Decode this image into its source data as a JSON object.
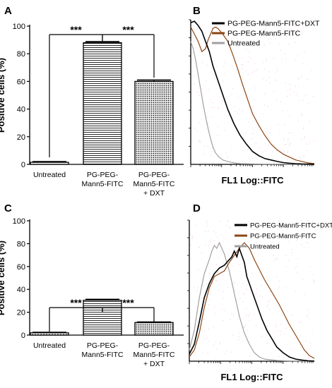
{
  "panels": {
    "A": "A",
    "B": "B",
    "C": "C",
    "D": "D"
  },
  "chart_data": [
    {
      "id": "A",
      "type": "bar",
      "ylabel": "Positive cells (%)",
      "ylim": [
        0,
        100
      ],
      "yticks": [
        "0",
        "20",
        "40",
        "60",
        "80",
        "100"
      ],
      "categories": [
        [
          "Untreated"
        ],
        [
          "PG-PEG-",
          "Mann5-FITC"
        ],
        [
          "PG-PEG-",
          "Mann5-FITC",
          "+ DXT"
        ]
      ],
      "values": [
        1.5,
        88,
        60
      ],
      "errors": [
        0.5,
        0.8,
        1
      ],
      "patterns": [
        "dots",
        "hlines",
        "dots-dense"
      ],
      "significance": [
        {
          "from": 0,
          "to": 1,
          "label": "***"
        },
        {
          "from": 1,
          "to": 2,
          "label": "***"
        }
      ]
    },
    {
      "id": "B",
      "type": "line",
      "xlabel": "FL1 Log::FITC",
      "legend": [
        {
          "name": "PG-PEG-Mann5-FITC+DXT",
          "color": "#000000"
        },
        {
          "name": "PG-PEG-Mann5-FITC",
          "color": "#8b4513"
        },
        {
          "name": "Untreated",
          "color": "#a0a0a0"
        }
      ],
      "series": [
        {
          "name": "PG-PEG-Mann5-FITC+DXT",
          "color": "#000000",
          "x": [
            0,
            3,
            6,
            9,
            12,
            15,
            18,
            22,
            26,
            30,
            35,
            40,
            45,
            50,
            55,
            60,
            65,
            70,
            75,
            80,
            85,
            90,
            95,
            100
          ],
          "y": [
            98,
            99,
            96,
            92,
            85,
            78,
            68,
            58,
            48,
            38,
            28,
            20,
            14,
            9,
            6,
            4,
            3,
            2,
            1.2,
            0.8,
            0.5,
            0.3,
            0.2,
            0.1
          ]
        },
        {
          "name": "PG-PEG-Mann5-FITC",
          "color": "#8b4513",
          "x": [
            0,
            3,
            6,
            9,
            12,
            14,
            16,
            18,
            20,
            22,
            24,
            26,
            30,
            34,
            38,
            42,
            46,
            50,
            55,
            60,
            65,
            70,
            75,
            80,
            85,
            90,
            95,
            100
          ],
          "y": [
            95,
            90,
            85,
            78,
            80,
            86,
            90,
            94,
            95,
            94,
            92,
            90,
            85,
            76,
            66,
            55,
            45,
            35,
            27,
            20,
            14,
            10,
            7,
            5,
            3,
            2,
            1,
            0.5
          ]
        },
        {
          "name": "Untreated",
          "color": "#a0a0a0",
          "x": [
            0,
            2,
            4,
            6,
            8,
            10,
            12,
            14,
            16,
            18,
            20,
            23,
            26,
            30,
            35,
            40,
            50,
            60,
            80,
            100
          ],
          "y": [
            85,
            80,
            72,
            62,
            52,
            42,
            33,
            25,
            18,
            12,
            8,
            5,
            3,
            2,
            1,
            0.5,
            0.3,
            0.2,
            0.1,
            0
          ]
        }
      ]
    },
    {
      "id": "C",
      "type": "bar",
      "ylabel": "Positive cells (%)",
      "ylim": [
        0,
        100
      ],
      "yticks": [
        "0",
        "20",
        "40",
        "60",
        "80",
        "100"
      ],
      "categories": [
        [
          "Untreated"
        ],
        [
          "PG-PEG-",
          "Mann5-FITC"
        ],
        [
          "PG-PEG-",
          "Mann5-FITC",
          "+ DXT"
        ]
      ],
      "values": [
        2,
        30.5,
        11
      ],
      "errors": [
        0.4,
        0.8,
        0.5
      ],
      "patterns": [
        "dots",
        "hlines",
        "dots-dense"
      ],
      "significance": [
        {
          "from": 0,
          "to": 1,
          "label": "***"
        },
        {
          "from": 1,
          "to": 2,
          "label": "***"
        }
      ]
    },
    {
      "id": "D",
      "type": "line",
      "xlabel": "FL1 Log::FITC",
      "legend": [
        {
          "name": "PG-PEG-Mann5-FITC+DXT",
          "color": "#000000"
        },
        {
          "name": "PG-PEG-Mann5-FITC",
          "color": "#8b4513"
        },
        {
          "name": "Untreated",
          "color": "#a0a0a0"
        }
      ],
      "series": [
        {
          "name": "PG-PEG-Mann5-FITC+DXT",
          "color": "#000000",
          "x": [
            0,
            4,
            8,
            12,
            16,
            20,
            24,
            28,
            32,
            34,
            36,
            38,
            40,
            42,
            44,
            46,
            48,
            50,
            54,
            58,
            62,
            66,
            70,
            75,
            80,
            85,
            90,
            95,
            100
          ],
          "y": [
            5,
            12,
            28,
            45,
            55,
            62,
            66,
            68,
            72,
            74,
            78,
            74,
            80,
            75,
            70,
            60,
            55,
            50,
            40,
            30,
            22,
            16,
            10,
            6,
            3,
            1.5,
            0.8,
            0.3,
            0.1
          ]
        },
        {
          "name": "PG-PEG-Mann5-FITC",
          "color": "#8b4513",
          "x": [
            0,
            4,
            8,
            12,
            16,
            20,
            24,
            28,
            32,
            36,
            40,
            44,
            48,
            52,
            56,
            60,
            64,
            68,
            72,
            76,
            80,
            84,
            88,
            92,
            96,
            100
          ],
          "y": [
            3,
            8,
            20,
            38,
            52,
            60,
            62,
            64,
            70,
            75,
            80,
            84,
            80,
            72,
            65,
            58,
            52,
            46,
            40,
            33,
            26,
            20,
            14,
            8,
            4,
            2
          ]
        },
        {
          "name": "Untreated",
          "color": "#a0a0a0",
          "x": [
            0,
            4,
            8,
            12,
            16,
            18,
            20,
            22,
            24,
            26,
            28,
            30,
            32,
            34,
            36,
            38,
            40,
            44,
            48,
            52,
            56,
            60,
            70,
            80,
            100
          ],
          "y": [
            8,
            22,
            45,
            62,
            72,
            78,
            82,
            80,
            84,
            80,
            76,
            70,
            64,
            56,
            48,
            40,
            32,
            20,
            12,
            6,
            3,
            1.5,
            0.5,
            0.2,
            0
          ]
        }
      ]
    }
  ]
}
